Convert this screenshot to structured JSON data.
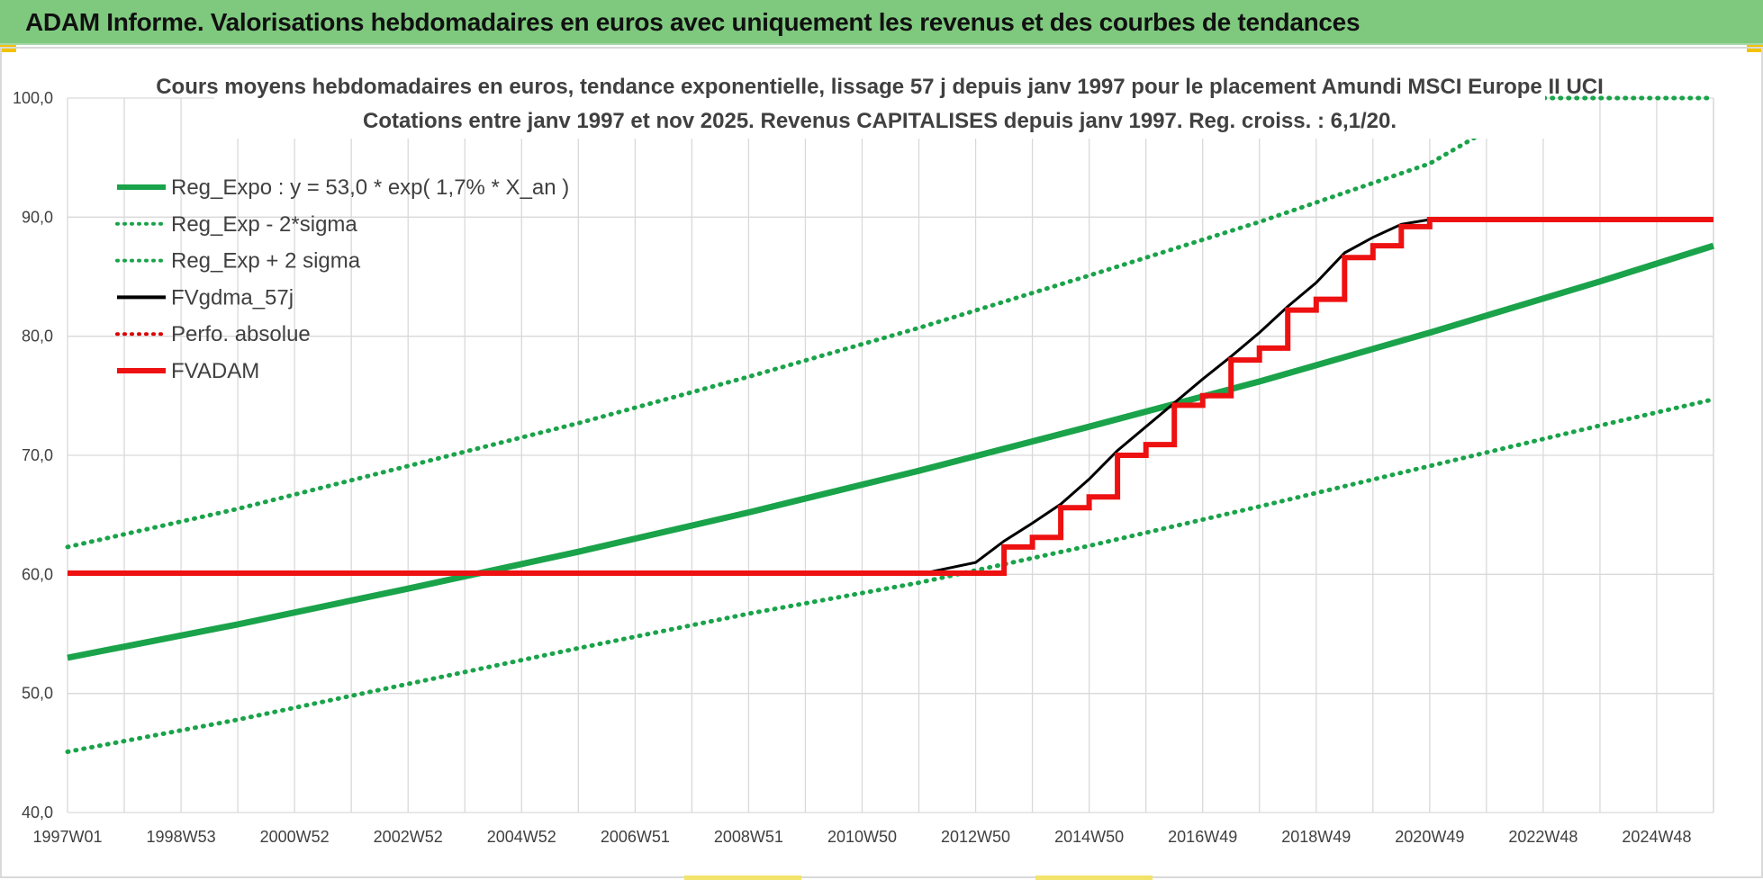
{
  "banner": {
    "title": "ADAM Informe. Valorisations hebdomadaires en euros avec uniquement les revenus et des courbes de tendances"
  },
  "colors": {
    "banner_bg": "#7fc97f",
    "reg_green": "#1aa34a",
    "fv_black": "#000000",
    "fvadam_red": "#ee1111",
    "perfo_red": "#dd0000",
    "grid": "#d9d9d9",
    "accent_yellow": "#f2c200"
  },
  "chart_data": {
    "type": "line",
    "title": "Cours moyens hebdomadaires en euros, tendance exponentielle, lissage 57 j depuis janv 1997 pour le placement Amundi MSCI Europe II UCI",
    "subtitle": "Cotations entre janv 1997 et nov 2025. Revenus CAPITALISES depuis janv 1997. Reg. croiss. : 6,1/20.",
    "xlabel": "",
    "ylabel": "",
    "x_range": [
      1997.0,
      2026.0
    ],
    "ylim": [
      40,
      100
    ],
    "y_ticks": [
      "100,0",
      "90,0",
      "80,0",
      "70,0",
      "60,0",
      "50,0",
      "40,0"
    ],
    "y_tick_values": [
      100,
      90,
      80,
      70,
      60,
      50,
      40
    ],
    "x_tick_labels": [
      "1997W01",
      "1998W53",
      "2000W52",
      "2002W52",
      "2004W52",
      "2006W51",
      "2008W51",
      "2010W50",
      "2012W50",
      "2014W50",
      "2016W49",
      "2018W49",
      "2020W49",
      "2022W48",
      "2024W48"
    ],
    "x_tick_values": [
      1997.0,
      1999.0,
      2001.0,
      2003.0,
      2005.0,
      2007.0,
      2009.0,
      2011.0,
      2013.0,
      2015.0,
      2017.0,
      2019.0,
      2021.0,
      2023.0,
      2025.0
    ],
    "grid": true,
    "legend_position": "top-left",
    "series": [
      {
        "name": "Reg_Expo : y = 53,0 * exp( 1,7% *  X_an )",
        "style": "solid-thick",
        "color": "#1aa34a",
        "x": [
          1997.0,
          2000.0,
          2003.0,
          2006.0,
          2009.0,
          2012.0,
          2015.0,
          2018.0,
          2021.0,
          2024.0,
          2026.0
        ],
        "y": [
          53.0,
          55.8,
          58.8,
          61.9,
          65.2,
          68.7,
          72.4,
          76.2,
          80.3,
          84.6,
          87.6
        ]
      },
      {
        "name": "Reg_Exp - 2*sigma",
        "style": "dotted",
        "color": "#1aa34a",
        "x": [
          1997.0,
          2000.0,
          2003.0,
          2006.0,
          2009.0,
          2012.0,
          2015.0,
          2018.0,
          2021.0,
          2024.0,
          2026.0
        ],
        "y": [
          45.1,
          47.8,
          50.8,
          53.8,
          56.7,
          59.3,
          62.4,
          65.7,
          69.1,
          72.5,
          74.7
        ]
      },
      {
        "name": "Reg_Exp + 2 sigma",
        "style": "dotted",
        "color": "#1aa34a",
        "x": [
          1997.0,
          2000.0,
          2003.0,
          2006.0,
          2009.0,
          2012.0,
          2015.0,
          2018.0,
          2021.0,
          2023.0,
          2026.0
        ],
        "y": [
          62.3,
          65.5,
          69.1,
          72.7,
          76.6,
          80.7,
          85.1,
          89.6,
          94.5,
          100.0,
          100.0
        ]
      },
      {
        "name": "FVgdma_57j",
        "style": "solid",
        "color": "#000000",
        "x": [
          1997.0,
          2012.0,
          2013.0,
          2013.5,
          2014.0,
          2014.5,
          2015.0,
          2015.5,
          2016.0,
          2016.5,
          2017.0,
          2017.5,
          2018.0,
          2018.5,
          2019.0,
          2019.5,
          2020.0,
          2020.5,
          2021.0,
          2026.0
        ],
        "y": [
          60.0,
          60.0,
          61.0,
          62.8,
          64.3,
          65.9,
          68.0,
          70.4,
          72.4,
          74.4,
          76.4,
          78.3,
          80.3,
          82.5,
          84.5,
          87.0,
          88.3,
          89.4,
          89.8,
          89.8
        ]
      },
      {
        "name": "Perfo. absolue",
        "style": "dotted",
        "color": "#dd0000",
        "x": [],
        "y": []
      },
      {
        "name": "FVADAM",
        "style": "step-thick",
        "color": "#ee1111",
        "x": [
          1997.0,
          2013.0,
          2013.0,
          2013.5,
          2013.5,
          2014.0,
          2014.0,
          2014.5,
          2014.5,
          2015.0,
          2015.0,
          2015.5,
          2015.5,
          2016.0,
          2016.0,
          2016.5,
          2016.5,
          2017.0,
          2017.0,
          2017.5,
          2017.5,
          2018.0,
          2018.0,
          2018.5,
          2018.5,
          2019.0,
          2019.0,
          2019.5,
          2019.5,
          2020.0,
          2020.0,
          2020.5,
          2020.5,
          2021.0,
          2021.0,
          2026.0
        ],
        "y": [
          60.1,
          60.1,
          60.1,
          60.1,
          62.3,
          62.3,
          63.1,
          63.1,
          65.6,
          65.6,
          66.5,
          66.5,
          70.0,
          70.0,
          70.9,
          70.9,
          74.2,
          74.2,
          75.0,
          75.0,
          78.0,
          78.0,
          79.0,
          79.0,
          82.2,
          82.2,
          83.1,
          83.1,
          86.6,
          86.6,
          87.6,
          87.6,
          89.2,
          89.2,
          89.8,
          89.8
        ]
      }
    ]
  }
}
